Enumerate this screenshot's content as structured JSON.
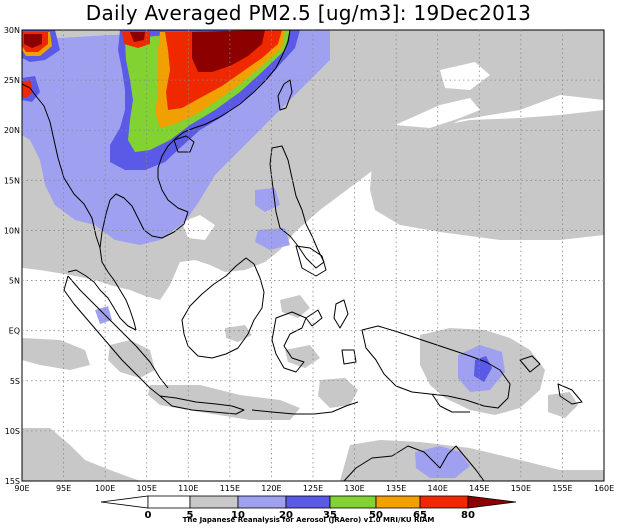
{
  "title": "Daily Averaged PM2.5 [ug/m3]: 19Dec2013",
  "credit": "The Japanese Reanalysis for Aerosol (JRAero) v1.0 MRI/KU RIAM",
  "map": {
    "lon_range": [
      90,
      160
    ],
    "lat_range": [
      -15,
      30
    ],
    "grid": "dotted",
    "lon_ticks": [
      "90E",
      "95E",
      "100E",
      "105E",
      "110E",
      "115E",
      "120E",
      "125E",
      "130E",
      "135E",
      "140E",
      "145E",
      "150E",
      "155E",
      "160E"
    ],
    "lat_ticks": [
      "30N",
      "25N",
      "20N",
      "15N",
      "10N",
      "5N",
      "EQ",
      "5S",
      "10S",
      "15S"
    ]
  },
  "legend": {
    "labels": [
      "0",
      "5",
      "10",
      "20",
      "35",
      "50",
      "65",
      "80"
    ],
    "colors": {
      "lt5": "#ffffff",
      "5-10": "#ffffff",
      "10-20": "#c8c8c8",
      "20-35": "#a0a0f0",
      "35-50": "#5a5ae6",
      "50-65": "#82d232",
      "65-80": "#f0a000",
      "80plus": "#f02800",
      "top": "#8c0000"
    }
  }
}
